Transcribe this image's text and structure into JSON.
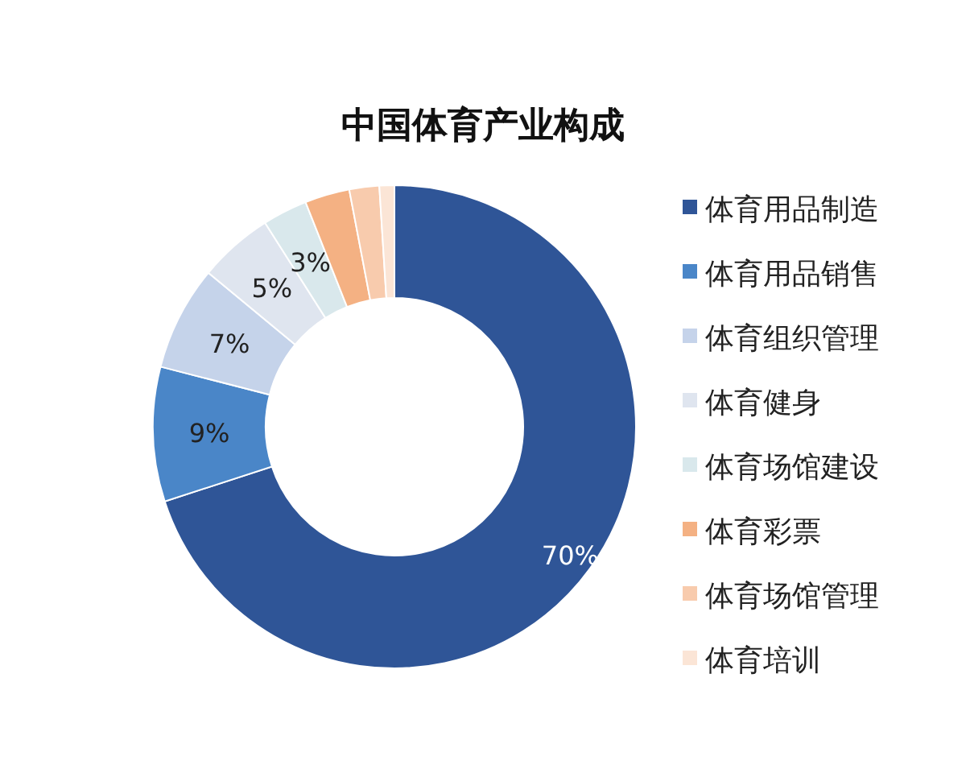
{
  "chart_data": {
    "type": "donut",
    "title": "中国体育产业构成",
    "categories": [
      "体育用品制造",
      "体育用品销售",
      "体育组织管理",
      "体育健身",
      "体育场馆建设",
      "体育彩票",
      "体育场馆管理",
      "体育培训"
    ],
    "values": [
      70,
      9,
      7,
      5,
      3,
      3,
      2,
      1
    ],
    "colors": [
      "#2f5597",
      "#4a86c8",
      "#c5d3ea",
      "#dfe5ef",
      "#d9e8ec",
      "#f4b183",
      "#f8cbad",
      "#fbe5d6"
    ],
    "value_labels": [
      "70%",
      "9%",
      "7%",
      "5%",
      "3%",
      null,
      null,
      null
    ],
    "legend": "right"
  }
}
